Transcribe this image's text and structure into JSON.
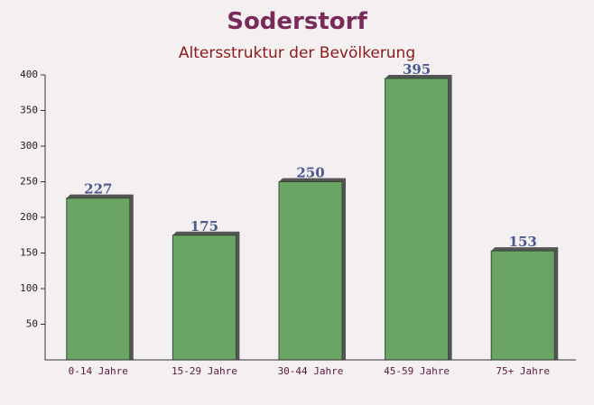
{
  "chart_data": {
    "type": "bar",
    "title": "Soderstorf",
    "subtitle": "Altersstruktur der Bevölkerung",
    "categories": [
      "0-14 Jahre",
      "15-29 Jahre",
      "30-44 Jahre",
      "45-59 Jahre",
      "75+ Jahre"
    ],
    "values": [
      227,
      175,
      250,
      395,
      153
    ],
    "color": "#6aa566",
    "ylim": [
      0,
      400
    ],
    "yticks": [
      50,
      100,
      150,
      200,
      250,
      300,
      350,
      400
    ],
    "grid": false
  }
}
